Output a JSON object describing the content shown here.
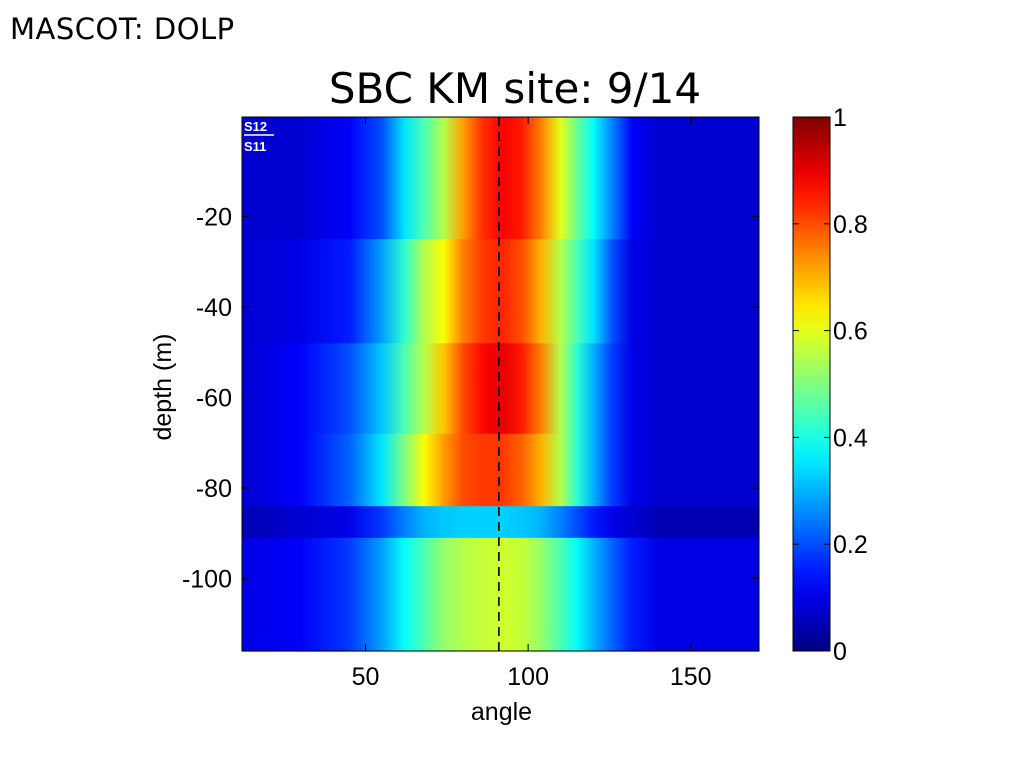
{
  "slide": {
    "header": "MASCOT: DOLP",
    "title": "SBC KM site: 9/14"
  },
  "chart_data": {
    "type": "heatmap",
    "xlabel": "angle",
    "ylabel": "depth (m)",
    "xlim": [
      12,
      171
    ],
    "ylim": [
      -116,
      2
    ],
    "x_ticks": [
      50,
      100,
      150
    ],
    "y_ticks": [
      -20,
      -40,
      -60,
      -80,
      -100
    ],
    "colorbar": {
      "range": [
        0,
        1
      ],
      "ticks": [
        0,
        0.2,
        0.4,
        0.6,
        0.8,
        1
      ],
      "colormap": "jet"
    },
    "reference_line": {
      "x": 91,
      "style": "dashed",
      "color": "#000000"
    },
    "overlay_text": {
      "numerator": "S12",
      "denominator": "S11"
    },
    "columns_x": [
      12,
      30,
      45,
      55,
      62,
      68,
      74,
      80,
      86,
      92,
      98,
      104,
      110,
      115,
      120,
      126,
      132,
      140,
      150,
      160,
      171
    ],
    "depth_bands": [
      {
        "from": 2,
        "to": -25,
        "values": [
          0.08,
          0.08,
          0.12,
          0.2,
          0.35,
          0.45,
          0.55,
          0.72,
          0.83,
          0.88,
          0.85,
          0.75,
          0.6,
          0.48,
          0.38,
          0.25,
          0.12,
          0.08,
          0.08,
          0.08,
          0.08
        ]
      },
      {
        "from": -25,
        "to": -48,
        "values": [
          0.08,
          0.1,
          0.15,
          0.28,
          0.42,
          0.55,
          0.62,
          0.75,
          0.82,
          0.84,
          0.8,
          0.7,
          0.55,
          0.45,
          0.35,
          0.2,
          0.1,
          0.08,
          0.08,
          0.08,
          0.08
        ]
      },
      {
        "from": -48,
        "to": -68,
        "values": [
          0.08,
          0.12,
          0.2,
          0.32,
          0.45,
          0.55,
          0.68,
          0.8,
          0.87,
          0.9,
          0.85,
          0.75,
          0.55,
          0.42,
          0.3,
          0.18,
          0.1,
          0.08,
          0.08,
          0.08,
          0.08
        ]
      },
      {
        "from": -68,
        "to": -84,
        "values": [
          0.08,
          0.12,
          0.22,
          0.35,
          0.5,
          0.62,
          0.72,
          0.8,
          0.82,
          0.82,
          0.78,
          0.7,
          0.55,
          0.42,
          0.3,
          0.18,
          0.1,
          0.08,
          0.08,
          0.08,
          0.08
        ]
      },
      {
        "from": -84,
        "to": -91,
        "values": [
          0.05,
          0.08,
          0.1,
          0.18,
          0.25,
          0.3,
          0.32,
          0.33,
          0.33,
          0.33,
          0.32,
          0.3,
          0.25,
          0.2,
          0.15,
          0.1,
          0.08,
          0.05,
          0.05,
          0.05,
          0.05
        ]
      },
      {
        "from": -91,
        "to": -116,
        "values": [
          0.1,
          0.12,
          0.18,
          0.28,
          0.38,
          0.45,
          0.52,
          0.55,
          0.57,
          0.58,
          0.57,
          0.52,
          0.45,
          0.38,
          0.3,
          0.22,
          0.15,
          0.1,
          0.1,
          0.1,
          0.1
        ]
      }
    ]
  }
}
